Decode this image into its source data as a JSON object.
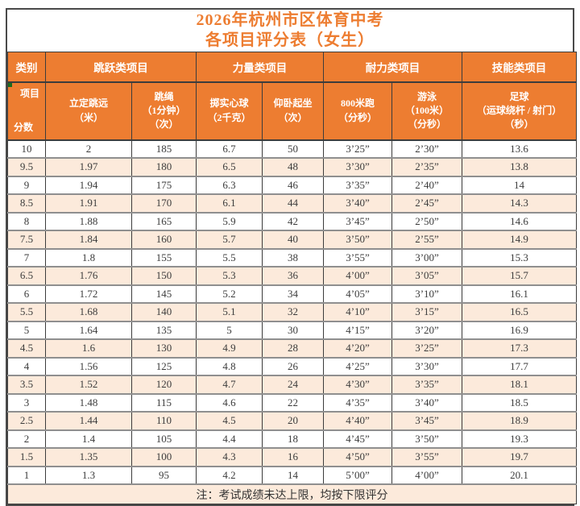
{
  "title": {
    "line1": "2026年杭州市区体育中考",
    "line2": "各项目评分表（女生）"
  },
  "colors": {
    "header_bg": "#ED7D31",
    "title_text": "#ED7D31",
    "alt_row_bg": "#FCEADB",
    "comment_indicator": "#1D6B1D"
  },
  "table": {
    "category_headers": [
      "类别",
      "跳跃类项目",
      "力量类项目",
      "耐力类项目",
      "技能类项目"
    ],
    "corner": {
      "top_right": "项目",
      "bottom_left": "分数"
    },
    "item_headers": [
      "立定跳远\n（米）",
      "跳绳\n（1分钟）\n（次）",
      "掷实心球\n（2千克）",
      "仰卧起坐\n（次）",
      "800米跑\n（分秒）",
      "游泳\n（100米）\n（分秒）",
      "足球\n（运球绕杆 / 射门）\n（秒）"
    ],
    "rows": [
      [
        "10",
        "2",
        "185",
        "6.7",
        "50",
        "3’25”",
        "2’30”",
        "13.6"
      ],
      [
        "9.5",
        "1.97",
        "180",
        "6.5",
        "48",
        "3’30”",
        "2’35”",
        "13.8"
      ],
      [
        "9",
        "1.94",
        "175",
        "6.3",
        "46",
        "3’35”",
        "2’40”",
        "14"
      ],
      [
        "8.5",
        "1.91",
        "170",
        "6.1",
        "44",
        "3’40”",
        "2’45”",
        "14.3"
      ],
      [
        "8",
        "1.88",
        "165",
        "5.9",
        "42",
        "3’45”",
        "2’50”",
        "14.6"
      ],
      [
        "7.5",
        "1.84",
        "160",
        "5.7",
        "40",
        "3’50”",
        "2’55”",
        "14.9"
      ],
      [
        "7",
        "1.8",
        "155",
        "5.5",
        "38",
        "3’55”",
        "3’00”",
        "15.3"
      ],
      [
        "6.5",
        "1.76",
        "150",
        "5.3",
        "36",
        "4’00”",
        "3’05”",
        "15.7"
      ],
      [
        "6",
        "1.72",
        "145",
        "5.2",
        "34",
        "4’05”",
        "3’10”",
        "16.1"
      ],
      [
        "5.5",
        "1.68",
        "140",
        "5.1",
        "32",
        "4’10”",
        "3’15”",
        "16.5"
      ],
      [
        "5",
        "1.64",
        "135",
        "5",
        "30",
        "4’15”",
        "3’20”",
        "16.9"
      ],
      [
        "4.5",
        "1.6",
        "130",
        "4.9",
        "28",
        "4’20”",
        "3’25”",
        "17.3"
      ],
      [
        "4",
        "1.56",
        "125",
        "4.8",
        "26",
        "4’25”",
        "3’30”",
        "17.7"
      ],
      [
        "3.5",
        "1.52",
        "120",
        "4.7",
        "24",
        "4’30”",
        "3’35”",
        "18.1"
      ],
      [
        "3",
        "1.48",
        "115",
        "4.6",
        "22",
        "4’35”",
        "3’40”",
        "18.5"
      ],
      [
        "2.5",
        "1.44",
        "110",
        "4.5",
        "20",
        "4’40”",
        "3’45”",
        "18.9"
      ],
      [
        "2",
        "1.4",
        "105",
        "4.4",
        "18",
        "4’45”",
        "3’50”",
        "19.3"
      ],
      [
        "1.5",
        "1.35",
        "100",
        "4.3",
        "16",
        "4’50”",
        "3’55”",
        "19.7"
      ],
      [
        "1",
        "1.3",
        "95",
        "4.2",
        "14",
        "5’00”",
        "4’00”",
        "20.1"
      ]
    ],
    "note": "注：考试成绩未达上限，均按下限评分"
  }
}
